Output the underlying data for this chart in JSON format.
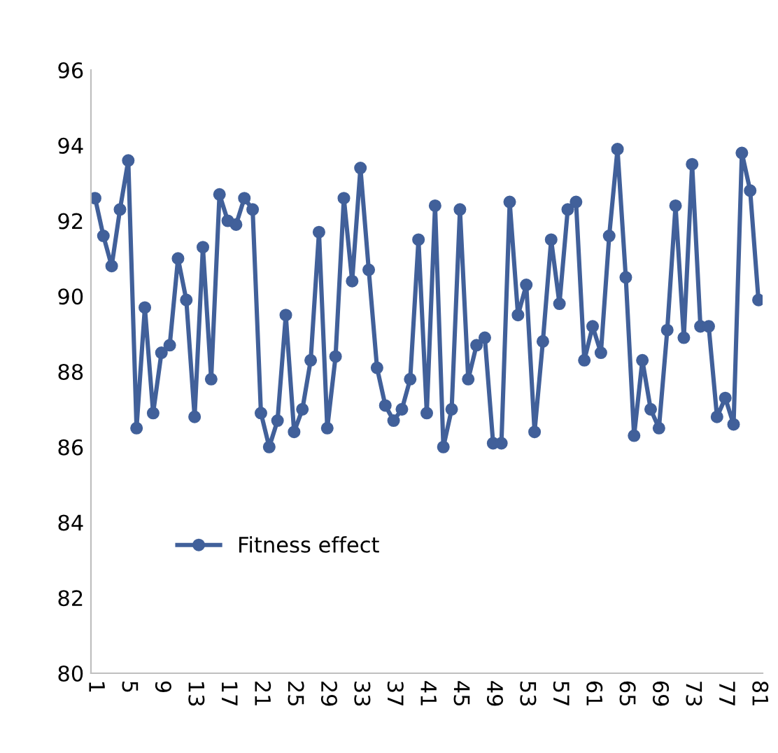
{
  "chart_data": {
    "type": "line",
    "categories": [
      "1",
      null,
      null,
      null,
      "5",
      null,
      null,
      null,
      "9",
      null,
      null,
      null,
      "13",
      null,
      null,
      null,
      "17",
      null,
      null,
      null,
      "21",
      null,
      null,
      null,
      "25",
      null,
      null,
      null,
      "29",
      null,
      null,
      null,
      "33",
      null,
      null,
      null,
      "37",
      null,
      null,
      null,
      "41",
      null,
      null,
      null,
      "45",
      null,
      null,
      null,
      "49",
      null,
      null,
      null,
      "53",
      null,
      null,
      null,
      "57",
      null,
      null,
      null,
      "61",
      null,
      null,
      null,
      "65",
      null,
      null,
      null,
      "69",
      null,
      null,
      null,
      "73",
      null,
      null,
      null,
      "77",
      null,
      null,
      null,
      "81"
    ],
    "series": [
      {
        "name": "Fitness effect",
        "color": "#41609a",
        "values": [
          92.6,
          91.6,
          90.8,
          92.3,
          93.6,
          86.5,
          89.7,
          86.9,
          88.5,
          88.7,
          91.0,
          89.9,
          86.8,
          91.3,
          87.8,
          92.7,
          92.0,
          91.9,
          92.6,
          92.3,
          86.9,
          86.0,
          86.7,
          89.5,
          86.4,
          87.0,
          88.3,
          91.7,
          86.5,
          88.4,
          92.6,
          90.4,
          93.4,
          90.7,
          88.1,
          87.1,
          86.7,
          87.0,
          87.8,
          91.5,
          86.9,
          92.4,
          86.0,
          87.0,
          92.3,
          87.8,
          88.7,
          88.9,
          86.1,
          86.1,
          92.5,
          89.5,
          90.3,
          86.4,
          88.8,
          91.5,
          89.8,
          92.3,
          92.5,
          88.3,
          89.2,
          88.5,
          91.6,
          93.9,
          90.5,
          86.3,
          88.3,
          87.0,
          86.5,
          89.1,
          92.4,
          88.9,
          93.5,
          89.2,
          89.2,
          86.8,
          87.3,
          86.6,
          93.8,
          92.8,
          89.9
        ]
      }
    ],
    "ylim": [
      80,
      96
    ],
    "yticks": [
      80,
      82,
      84,
      86,
      88,
      90,
      92,
      94,
      96
    ],
    "marker": "circle",
    "line_style": "solid",
    "legend": "center left",
    "grid": false
  }
}
